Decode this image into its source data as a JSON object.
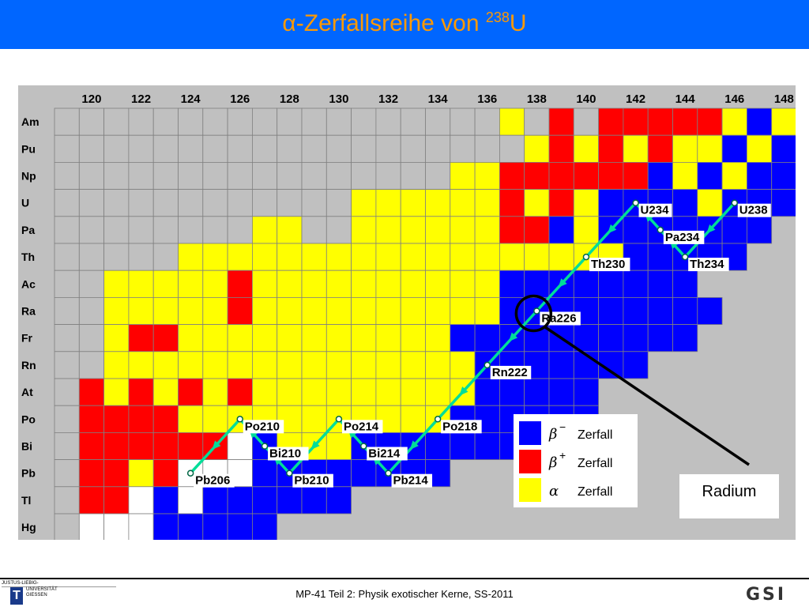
{
  "header": {
    "title_prefix": "α-Zerfallsreihe von ",
    "title_mass": "238",
    "title_element": "U",
    "background": "#0066ff",
    "title_color": "#ff9900"
  },
  "colors": {
    "beta_minus": "#0000ff",
    "beta_plus": "#ff0000",
    "alpha": "#ffff00",
    "stable": "#ffffff",
    "unknown": "#c0c0c0",
    "path": "#00dd99"
  },
  "chart": {
    "n_ticks": [
      "120",
      "122",
      "124",
      "126",
      "128",
      "130",
      "132",
      "134",
      "136",
      "138",
      "140",
      "142",
      "144",
      "146",
      "148"
    ],
    "elements": [
      "Am",
      "Pu",
      "Np",
      "U",
      "Pa",
      "Th",
      "Ac",
      "Ra",
      "Fr",
      "Rn",
      "At",
      "Po",
      "Bi",
      "Pb",
      "Tl",
      "Hg"
    ],
    "grid_rows": [
      "GGGGGGGGGGGGGGGGGGYGRGRRRRRYBY",
      "GGGGGGGGGGGGGGGGGGGYRYRYRYYBYB",
      "GGGGGGGGGGGGGGGGYYRRRRRRBYBYBB",
      "GGGGGGGGGGGGYYYYYYRYRYBBBBYBBB",
      "GGGGGGGGYYGGYYYYYYRRBYBBBBBBB.",
      "GGGGGYYYYYYYYYYYYYYYYYYBBBBB..",
      "GGYYYYYRYYYYYYYYYYBBBBBBBB....",
      "GGYYYYYRYYYYYYYYYYBBBBBBBBB...",
      "GGYRRYYYYYYYYYYYBBBBBBBBBB....",
      "GGYYYYYYYYYYYYYYYBBBBBBB......",
      "GRYRYRYRYYYYYYYYYBBBBB........",
      "GRRRRYYYYYYYYYYYBBBBBB........",
      "GRRRRRRWBYYYBBBBBBBB..........",
      "GRRYRWWWBBBBBBBB..............",
      "GRRWBWBBBBBB..................",
      "GWWWBBBBB....................."
    ]
  },
  "decay_path": [
    {
      "nuclide": "U238",
      "z": 92,
      "n": 146,
      "label": "U238"
    },
    {
      "nuclide": "Th234",
      "z": 90,
      "n": 144,
      "label": "Th234"
    },
    {
      "nuclide": "Pa234",
      "z": 91,
      "n": 143,
      "label": "Pa234"
    },
    {
      "nuclide": "U234",
      "z": 92,
      "n": 142,
      "label": "U234"
    },
    {
      "nuclide": "Th230",
      "z": 90,
      "n": 140,
      "label": "Th230"
    },
    {
      "nuclide": "Ra226",
      "z": 88,
      "n": 138,
      "label": "Ra226"
    },
    {
      "nuclide": "Rn222",
      "z": 86,
      "n": 136,
      "label": "Rn222"
    },
    {
      "nuclide": "Po218",
      "z": 84,
      "n": 134,
      "label": "Po218"
    },
    {
      "nuclide": "Pb214",
      "z": 82,
      "n": 132,
      "label": "Pb214"
    },
    {
      "nuclide": "Bi214",
      "z": 83,
      "n": 131,
      "label": "Bi214"
    },
    {
      "nuclide": "Po214",
      "z": 84,
      "n": 130,
      "label": "Po214"
    },
    {
      "nuclide": "Pb210",
      "z": 82,
      "n": 128,
      "label": "Pb210"
    },
    {
      "nuclide": "Bi210",
      "z": 83,
      "n": 127,
      "label": "Bi210"
    },
    {
      "nuclide": "Po210",
      "z": 84,
      "n": 126,
      "label": "Po210"
    },
    {
      "nuclide": "Pb206",
      "z": 82,
      "n": 124,
      "label": "Pb206"
    }
  ],
  "legend": {
    "items": [
      {
        "symbol": "β",
        "superscript": "−",
        "label": "Zerfall",
        "color": "#0000ff"
      },
      {
        "symbol": "β",
        "superscript": "+",
        "label": "Zerfall",
        "color": "#ff0000"
      },
      {
        "symbol": "α",
        "superscript": "",
        "label": "Zerfall",
        "color": "#ffff00"
      }
    ]
  },
  "annotation": {
    "text": "Radium",
    "highlight": "Ra226"
  },
  "footer": {
    "text": "MP-41 Teil 2: Physik exotischer Kerne, SS-2011",
    "uni_line1": "JUSTUS-LIEBIG-",
    "uni_line2": "UNIVERSITÄT",
    "uni_line3": "GIESSEN",
    "uni_mark": "T",
    "gsi": "GSI"
  }
}
